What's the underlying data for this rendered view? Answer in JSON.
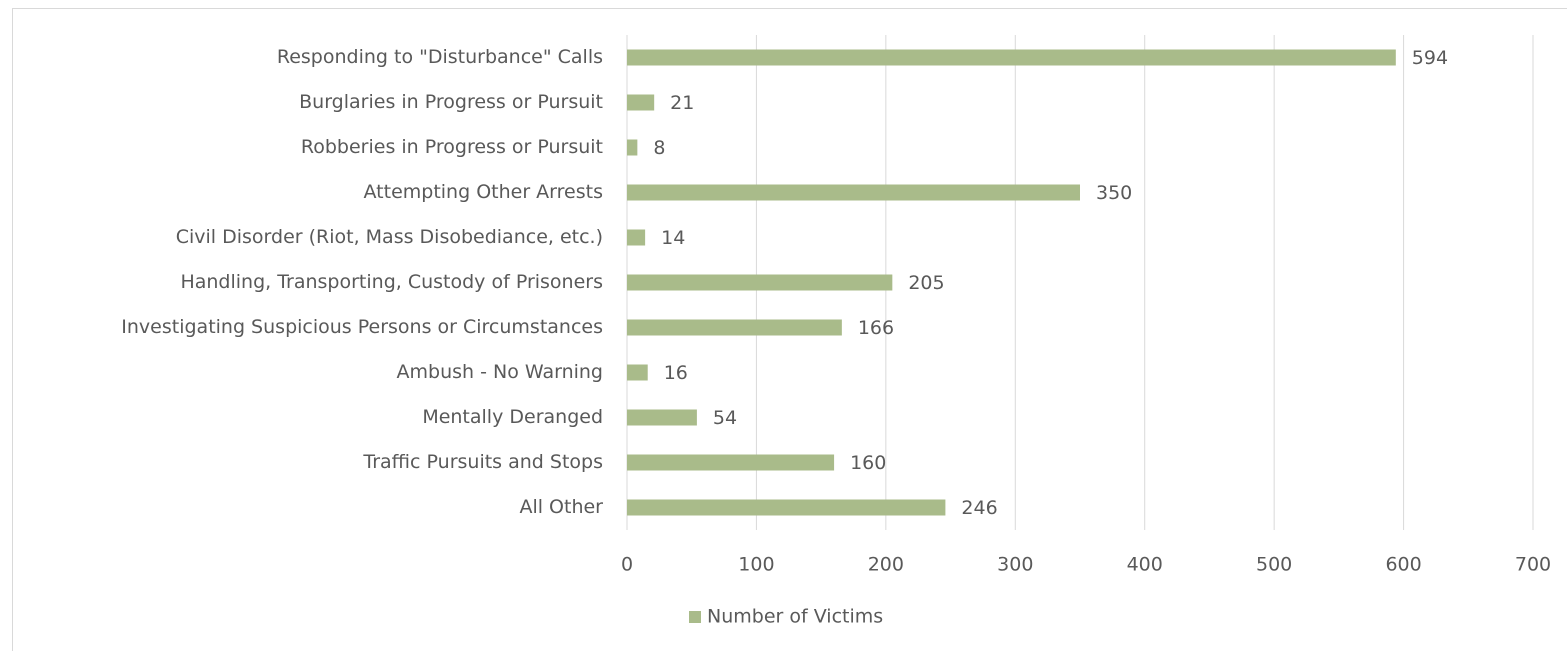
{
  "chart_data": {
    "type": "bar",
    "orientation": "horizontal",
    "categories": [
      "Responding to \"Disturbance\" Calls",
      "Burglaries in Progress or Pursuit",
      "Robberies in Progress or Pursuit",
      "Attempting Other Arrests",
      "Civil Disorder (Riot, Mass Disobediance, etc.)",
      "Handling, Transporting, Custody of Prisoners",
      "Investigating Suspicious Persons or Circumstances",
      "Ambush - No Warning",
      "Mentally Deranged",
      "Traffic Pursuits and Stops",
      "All Other"
    ],
    "series": [
      {
        "name": "Number of Victims",
        "color": "#a9bb8a",
        "values": [
          594,
          21,
          8,
          350,
          14,
          205,
          166,
          16,
          54,
          160,
          246
        ]
      }
    ],
    "xlim": [
      0,
      700
    ],
    "xticks": [
      0,
      100,
      200,
      300,
      400,
      500,
      600,
      700
    ],
    "grid": true,
    "legend": "bottom",
    "data_labels": true
  }
}
